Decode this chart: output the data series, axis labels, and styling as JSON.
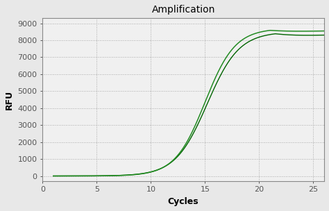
{
  "title": "Amplification",
  "xlabel": "Cycles",
  "ylabel": "RFU",
  "xlim": [
    0,
    26
  ],
  "ylim": [
    -300,
    9300
  ],
  "yticks": [
    0,
    1000,
    2000,
    3000,
    4000,
    5000,
    6000,
    7000,
    8000,
    9000
  ],
  "xticks": [
    0,
    5,
    10,
    15,
    20,
    25
  ],
  "background_color": "#e8e8e8",
  "plot_bg_color": "#f0f0f0",
  "grid_color": "#aaaaaa",
  "line_color_main": "#228B22",
  "line_color_second": "#006400",
  "title_fontsize": 10,
  "axis_label_fontsize": 9,
  "tick_labelsize": 8,
  "sigmoid_L": 8700,
  "sigmoid_k": 0.72,
  "sigmoid_x0": 15.0,
  "sigmoid_L2": 8500,
  "sigmoid_k2": 0.68,
  "sigmoid_x02": 15.2,
  "peak_cycle": 21.0,
  "peak_drop": 400,
  "peak_cycle2": 21.5,
  "peak_drop2": 500,
  "x_start": 1,
  "x_end": 26
}
